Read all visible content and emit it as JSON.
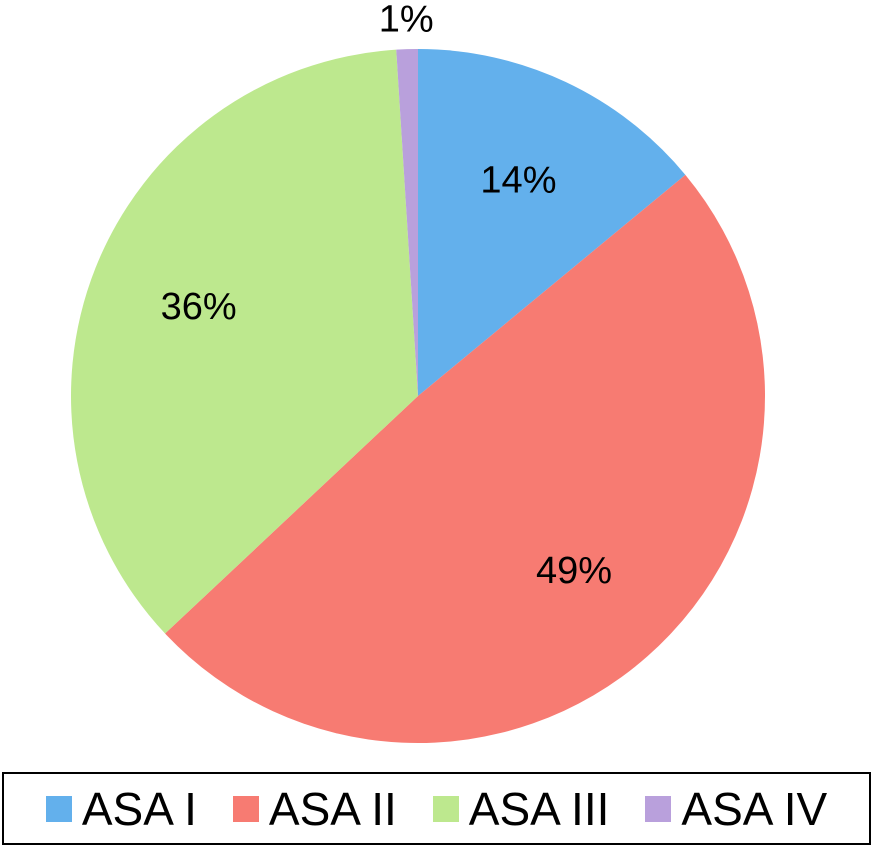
{
  "chart_data": {
    "type": "pie",
    "categories": [
      "ASA I",
      "ASA II",
      "ASA III",
      "ASA IV"
    ],
    "values": [
      14,
      49,
      36,
      1
    ],
    "value_labels": [
      "14%",
      "49%",
      "36%",
      "1%"
    ],
    "colors": [
      "#63b0ec",
      "#f77b72",
      "#bde88e",
      "#b9a0dc"
    ],
    "legend": "bottom"
  }
}
